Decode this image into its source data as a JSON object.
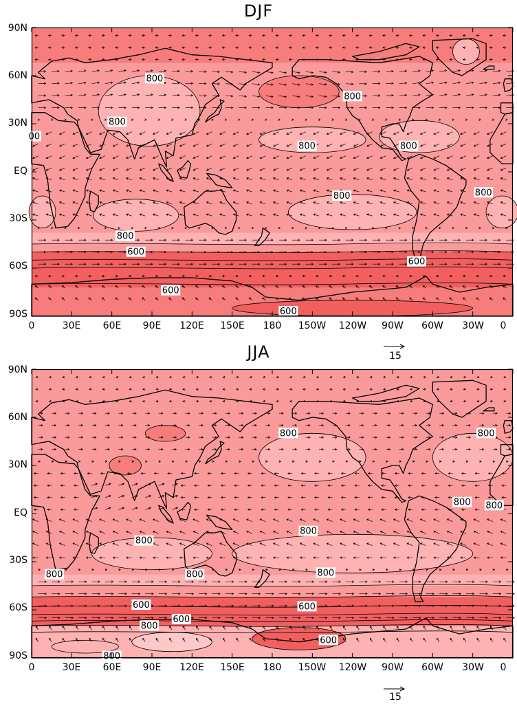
{
  "panels": [
    {
      "id": "djf",
      "title": "DJF",
      "lat_ticks": [
        "90N",
        "60N",
        "30N",
        "EQ",
        "30S",
        "60S",
        "90S"
      ],
      "lon_ticks": [
        "0",
        "30E",
        "60E",
        "90E",
        "120E",
        "150E",
        "180",
        "150W",
        "120W",
        "90W",
        "60W",
        "30W",
        "0"
      ],
      "contour_labels": [
        {
          "text": "800",
          "lon": 92,
          "lat": 58
        },
        {
          "text": "800",
          "lon": 64,
          "lat": 31
        },
        {
          "text": "00",
          "lon": 2,
          "lat": 22
        },
        {
          "text": "800",
          "lon": 206,
          "lat": 16
        },
        {
          "text": "800",
          "lon": 240,
          "lat": 47
        },
        {
          "text": "800",
          "lon": 282,
          "lat": 16
        },
        {
          "text": "800",
          "lon": 232,
          "lat": -15
        },
        {
          "text": "800",
          "lon": 338,
          "lat": -13
        },
        {
          "text": "800",
          "lon": 70,
          "lat": -40
        },
        {
          "text": "600",
          "lon": 78,
          "lat": -50
        },
        {
          "text": "600",
          "lon": 288,
          "lat": -56
        },
        {
          "text": "600",
          "lon": 104,
          "lat": -74
        },
        {
          "text": "600",
          "lon": 192,
          "lat": -87
        }
      ],
      "reference_vector": "15"
    },
    {
      "id": "jja",
      "title": "JJA",
      "lat_ticks": [
        "90N",
        "60N",
        "30N",
        "EQ",
        "30S",
        "60S",
        "90S"
      ],
      "lon_ticks": [
        "0",
        "30E",
        "60E",
        "90E",
        "120E",
        "150E",
        "180",
        "150W",
        "120W",
        "90W",
        "60W",
        "30W",
        "0"
      ],
      "contour_labels": [
        {
          "text": "800",
          "lon": 192,
          "lat": 50
        },
        {
          "text": "800",
          "lon": 340,
          "lat": 50
        },
        {
          "text": "800",
          "lon": 322,
          "lat": 7
        },
        {
          "text": "800",
          "lon": 346,
          "lat": 5
        },
        {
          "text": "800",
          "lon": 84,
          "lat": -17
        },
        {
          "text": "800",
          "lon": 207,
          "lat": -11
        },
        {
          "text": "800",
          "lon": 17,
          "lat": -38
        },
        {
          "text": "800",
          "lon": 122,
          "lat": -38
        },
        {
          "text": "800",
          "lon": 220,
          "lat": -37
        },
        {
          "text": "600",
          "lon": 82,
          "lat": -57
        },
        {
          "text": "600",
          "lon": 206,
          "lat": -58
        },
        {
          "text": "800",
          "lon": 88,
          "lat": -70
        },
        {
          "text": "600",
          "lon": 112,
          "lat": -66
        },
        {
          "text": "600",
          "lon": 222,
          "lat": -79
        },
        {
          "text": "800",
          "lon": 60,
          "lat": -89
        }
      ],
      "reference_vector": "15"
    }
  ],
  "colors": {
    "band_lightest": "#ffc8c8",
    "band_light": "#ffb2b2",
    "band_mid": "#fb9a9a",
    "band_dark": "#f77c7c",
    "band_darkest": "#f25f5f",
    "coastline": "#000000",
    "vector": "#000000"
  }
}
